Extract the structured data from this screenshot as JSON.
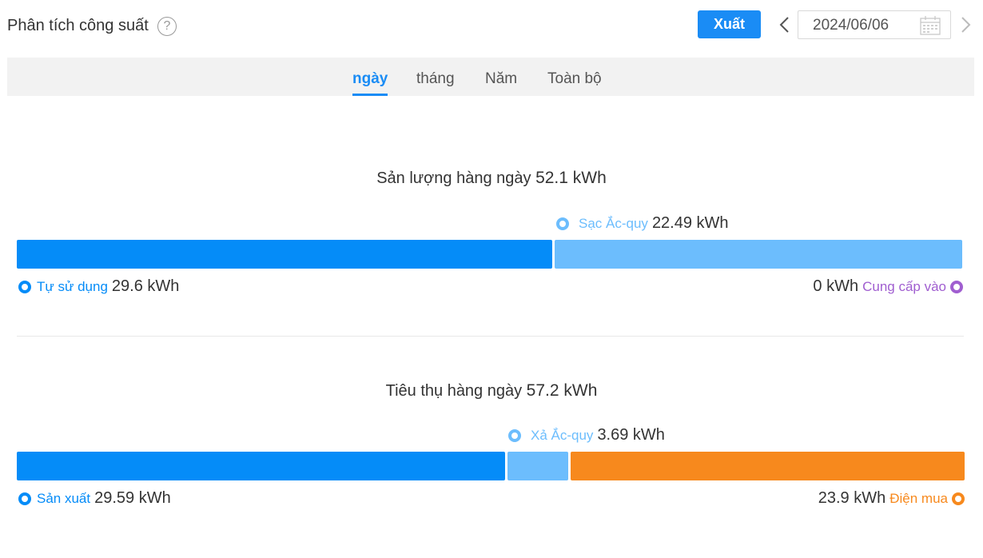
{
  "header": {
    "title": "Phân tích công suất",
    "help_symbol": "?",
    "export_label": "Xuất",
    "date": "2024/06/06"
  },
  "tabs": [
    {
      "label": "ngày",
      "active": true
    },
    {
      "label": "tháng",
      "active": false
    },
    {
      "label": "Năm",
      "active": false
    },
    {
      "label": "Toàn bộ",
      "active": false
    }
  ],
  "production": {
    "title": "Sản lượng hàng ngày",
    "total": "52.1 kWh",
    "battery_charge": {
      "label": "Sạc Ắc-quy",
      "value": "22.49 kWh",
      "kwh": 22.49
    },
    "self_use": {
      "label": "Tự sử dụng",
      "value": "29.6 kWh",
      "kwh": 29.6
    },
    "grid_export": {
      "label": "Cung cấp vào",
      "value": "0 kWh",
      "kwh": 0
    }
  },
  "consumption": {
    "title": "Tiêu thụ hàng ngày",
    "total": "57.2 kWh",
    "battery_discharge": {
      "label": "Xả Ắc-quy",
      "value": "3.69 kWh",
      "kwh": 3.69
    },
    "from_production": {
      "label": "Sản xuất",
      "value": "29.59 kWh",
      "kwh": 29.59
    },
    "grid_import": {
      "label": "Điện mua",
      "value": "23.9 kWh",
      "kwh": 23.9
    }
  },
  "colors": {
    "primary_blue": "#058cf8",
    "light_blue": "#6cbdfd",
    "orange": "#f7891d",
    "purple": "#a05ed0",
    "accent": "#1a8cf5"
  },
  "icons": {
    "help": "help-circle-icon",
    "prev": "chevron-left-icon",
    "next": "chevron-right-icon",
    "calendar": "calendar-icon"
  }
}
